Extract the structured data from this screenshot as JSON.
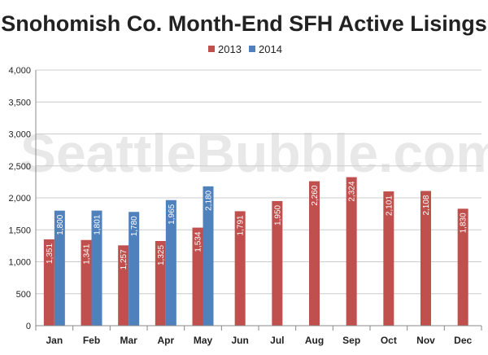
{
  "chart_data": {
    "type": "bar",
    "title": "Snohomish Co. Month-End SFH Active Lisings",
    "watermark": "SeattleBubble.com",
    "xlabel": "",
    "ylabel": "",
    "categories": [
      "Jan",
      "Feb",
      "Mar",
      "Apr",
      "May",
      "Jun",
      "Jul",
      "Aug",
      "Sep",
      "Oct",
      "Nov",
      "Dec"
    ],
    "series": [
      {
        "name": "2013",
        "color": "#c0504d",
        "values": [
          1351,
          1341,
          1257,
          1325,
          1534,
          1791,
          1950,
          2260,
          2324,
          2101,
          2108,
          1830
        ],
        "labels": [
          "1,351",
          "1,341",
          "1,257",
          "1,325",
          "1,534",
          "1,791",
          "1,950",
          "2,260",
          "2,324",
          "2,101",
          "2,108",
          "1,830"
        ]
      },
      {
        "name": "2014",
        "color": "#4f81bd",
        "values": [
          1800,
          1801,
          1780,
          1965,
          2180,
          null,
          null,
          null,
          null,
          null,
          null,
          null
        ],
        "labels": [
          "1,800",
          "1,801",
          "1,780",
          "1,965",
          "2,180",
          null,
          null,
          null,
          null,
          null,
          null,
          null
        ]
      }
    ],
    "ylim": [
      0,
      4000
    ],
    "yticks": [
      0,
      500,
      1000,
      1500,
      2000,
      2500,
      3000,
      3500,
      4000
    ],
    "ytick_labels": [
      "0",
      "500",
      "1,000",
      "1,500",
      "2,000",
      "2,500",
      "3,000",
      "3,500",
      "4,000"
    ],
    "grid": "horizontal",
    "legend_position": "top-center"
  }
}
